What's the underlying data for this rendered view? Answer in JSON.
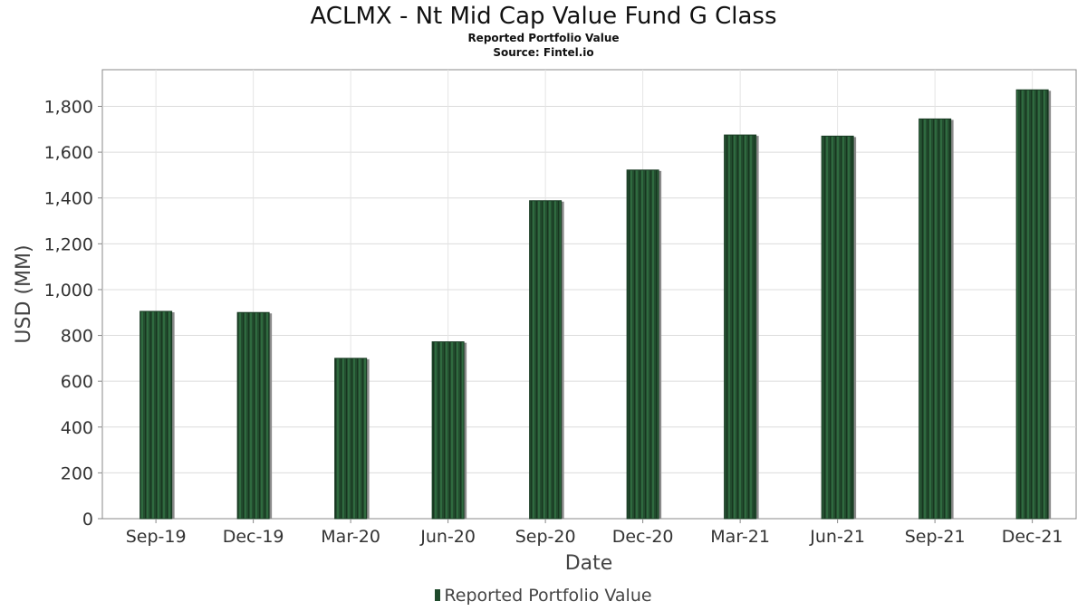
{
  "chart_data": {
    "type": "bar",
    "title": "ACLMX - Nt Mid Cap Value Fund G Class",
    "subtitle_lines": [
      "Reported Portfolio Value",
      "Source: Fintel.io"
    ],
    "xlabel": "Date",
    "ylabel": "USD (MM)",
    "categories": [
      "Sep-19",
      "Dec-19",
      "Mar-20",
      "Jun-20",
      "Sep-20",
      "Dec-20",
      "Mar-21",
      "Jun-21",
      "Sep-21",
      "Dec-21"
    ],
    "series": [
      {
        "name": "Reported Portfolio Value",
        "values": [
          905,
          900,
          700,
          772,
          1388,
          1522,
          1675,
          1670,
          1745,
          1872
        ],
        "color": "#1f4a2c"
      }
    ],
    "ylim": [
      0,
      1960
    ],
    "yticks": [
      0,
      200,
      400,
      600,
      800,
      1000,
      1200,
      1400,
      1600,
      1800
    ],
    "ytick_labels": [
      "0",
      "200",
      "400",
      "600",
      "800",
      "1,000",
      "1,200",
      "1,400",
      "1,600",
      "1,800"
    ],
    "grid": true,
    "legend_position": "bottom-center"
  }
}
